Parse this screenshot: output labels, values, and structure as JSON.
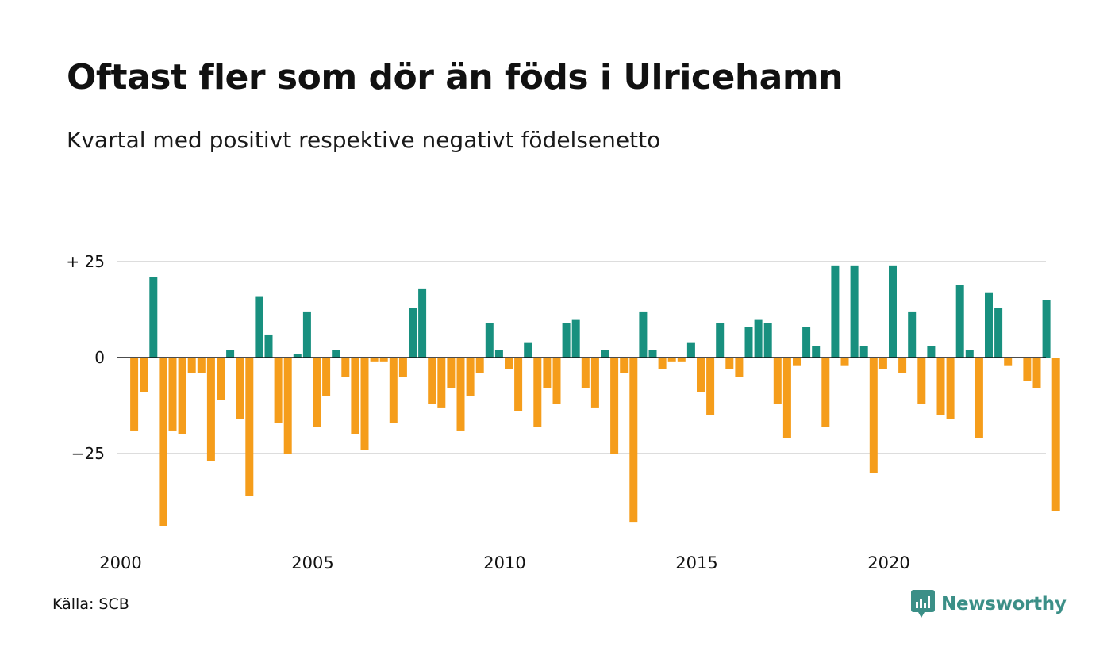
{
  "header": {
    "title": "Oftast fler som dör än föds i Ulricehamn",
    "subtitle": "Kvartal med positivt respektive negativt födelsenetto"
  },
  "footer": {
    "source": "Källa: SCB",
    "brand": "Newsworthy",
    "brand_icon": "newsworthy-logo-icon"
  },
  "colors": {
    "positive": "#18907f",
    "negative": "#f59d1b",
    "grid": "#dddddd",
    "axis": "#111111"
  },
  "chart_data": {
    "type": "bar",
    "xlabel": "",
    "ylabel": "",
    "ylim": [
      -44,
      28
    ],
    "yticks": [
      25,
      0,
      -25
    ],
    "ytick_labels": [
      "+ 25",
      "0",
      "−25"
    ],
    "xticks": [
      "2000",
      "2005",
      "2010",
      "2015",
      "2020"
    ],
    "grid": true,
    "start_year": 2000,
    "values": [
      0,
      -19,
      -9,
      21,
      -44,
      -19,
      -20,
      -4,
      -4,
      -27,
      -11,
      2,
      -16,
      -36,
      16,
      6,
      -17,
      -25,
      1,
      12,
      -18,
      -10,
      2,
      -5,
      -20,
      -24,
      -1,
      -1,
      -17,
      -5,
      13,
      18,
      -12,
      -13,
      -8,
      -19,
      -10,
      -4,
      9,
      2,
      -3,
      -14,
      4,
      -18,
      -8,
      -12,
      9,
      10,
      -8,
      -13,
      2,
      -25,
      -4,
      -43,
      12,
      2,
      -3,
      -1,
      -1,
      4,
      -9,
      -15,
      9,
      -3,
      -5,
      8,
      10,
      9,
      -12,
      -21,
      -2,
      8,
      3,
      -18,
      24,
      -2,
      24,
      3,
      -30,
      -3,
      24,
      -4,
      12,
      -12,
      3,
      -15,
      -16,
      19,
      2,
      -21,
      17,
      13,
      -2,
      0,
      -6,
      -8,
      15,
      -40
    ]
  }
}
